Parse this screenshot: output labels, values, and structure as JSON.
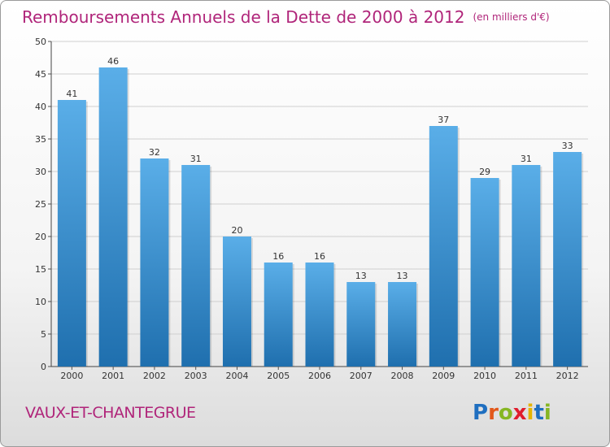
{
  "chart_data": {
    "type": "bar",
    "title": "Remboursements Annuels de la Dette de 2000 à 2012",
    "subtitle": "(en milliers d'€)",
    "categories": [
      "2000",
      "2001",
      "2002",
      "2003",
      "2004",
      "2005",
      "2006",
      "2007",
      "2008",
      "2009",
      "2010",
      "2011",
      "2012"
    ],
    "values": [
      41,
      46,
      32,
      31,
      20,
      16,
      16,
      13,
      13,
      37,
      29,
      31,
      33
    ],
    "ylim": [
      0,
      50
    ],
    "yticks": [
      0,
      5,
      10,
      15,
      20,
      25,
      30,
      35,
      40,
      45,
      50
    ],
    "grid": true,
    "xlabel": "",
    "ylabel": ""
  },
  "location": "VAUX-ET-CHANTEGRUE",
  "logo": {
    "text": "Proxiti",
    "letter_colors": [
      "#1f6fc0",
      "#e2581b",
      "#86b623",
      "#e01d2d",
      "#e5b400",
      "#1f6fc0",
      "#86b623"
    ]
  },
  "colors": {
    "title": "#b0257a",
    "bar_top": "#5aaee8",
    "bar_bottom": "#1f6fae",
    "grid": "#cfcfcf"
  }
}
